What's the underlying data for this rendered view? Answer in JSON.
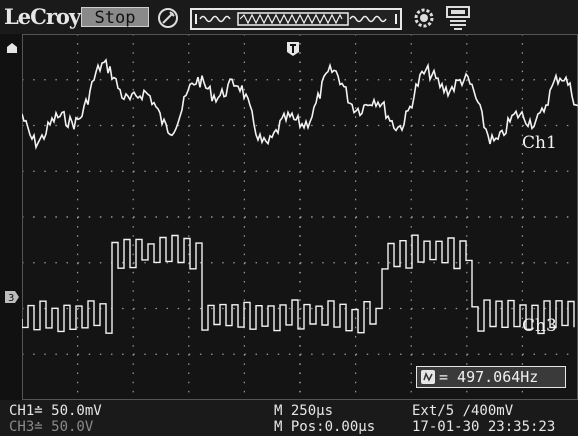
{
  "header": {
    "brand": "LeCroy",
    "run_state": "Stop",
    "icons": [
      "probe-icon",
      "record-length-icon",
      "settings-icon",
      "usb-icon"
    ]
  },
  "channels": {
    "ch1_label": "Ch1",
    "ch3_label": "Ch3"
  },
  "measurement": {
    "frequency": "= 497.064Hz",
    "icon": "frequency-icon"
  },
  "status": {
    "ch1": "CH1≐ 50.0mV",
    "ch3": "CH3≐ 50.0V",
    "timebase": "M 250μs",
    "position": "M Pos:0.00μs",
    "trigger": "Ext/5 ∕400mV",
    "datetime": "17-01-30 23:35:23"
  },
  "colors": {
    "trace": "#f2f2f2",
    "grid": "#9a9a9a",
    "screen": "#141414",
    "dim_text": "#8a8a8a"
  }
}
